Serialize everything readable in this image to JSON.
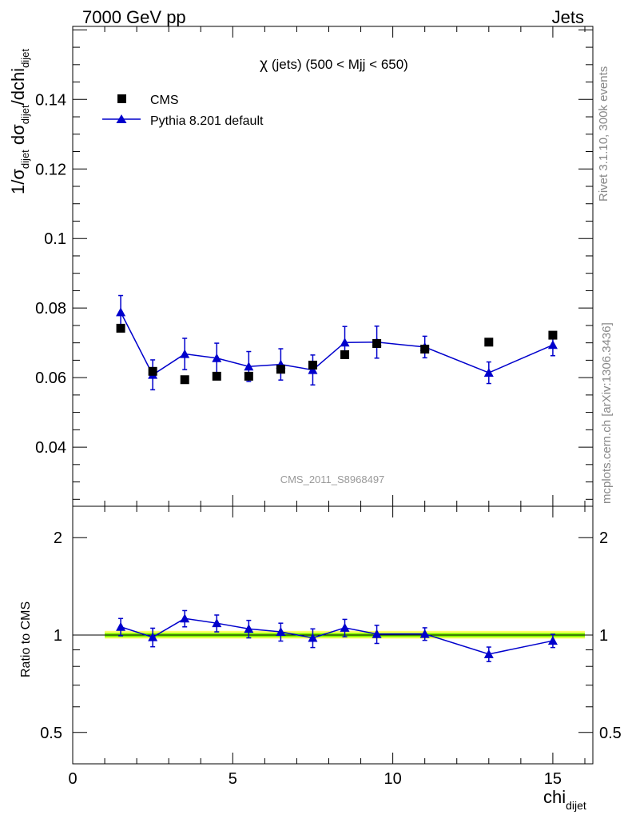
{
  "header": {
    "left": "7000 GeV pp",
    "right": "Jets"
  },
  "side_labels": {
    "rivet": "Rivet 3.1.10,  300k events",
    "mcplots": "mcplots.cern.ch [arXiv:1306.3436]"
  },
  "plot_title": {
    "chi": "χ",
    "rest": " (jets) (500 < Mjj <  650)"
  },
  "watermark": "CMS_2011_S8968497",
  "legend": {
    "data_label": "CMS",
    "mc_label": "Pythia 8.201 default"
  },
  "axes": {
    "x_label_main": "chi",
    "x_label_sub": "dijet",
    "ratio_ylabel": "Ratio to CMS"
  },
  "colors": {
    "data": "#000000",
    "mc": "#0000cc",
    "band_inner": "#80ff00",
    "band_outer": "#ffff66"
  },
  "chart_data": [
    {
      "type": "scatter",
      "panel": "main",
      "ylabel": "1/σ_dijet dσ_dijet/dchi_dijet",
      "xlim": [
        0,
        16.25
      ],
      "ylim": [
        0.023,
        0.161
      ],
      "x_ticks": [
        0,
        5,
        10,
        15
      ],
      "y_ticks": [
        0.04,
        0.06,
        0.08,
        0.1,
        0.12,
        0.14
      ],
      "y_tick_labels": [
        "0.04",
        "0.06",
        "0.08",
        "0.1",
        "0.12",
        "0.14"
      ],
      "series": [
        {
          "name": "CMS",
          "marker": "square",
          "x": [
            1.5,
            2.5,
            3.5,
            4.5,
            5.5,
            6.5,
            7.5,
            8.5,
            9.5,
            11.0,
            13.0,
            15.0
          ],
          "y": [
            0.0742,
            0.0618,
            0.0594,
            0.0604,
            0.0604,
            0.0624,
            0.0636,
            0.0666,
            0.0698,
            0.0682,
            0.0702,
            0.0722
          ]
        },
        {
          "name": "Pythia 8.201 default",
          "marker": "triangle",
          "x": [
            1.5,
            2.5,
            3.5,
            4.5,
            5.5,
            6.5,
            7.5,
            8.5,
            9.5,
            11.0,
            13.0,
            15.0
          ],
          "y": [
            0.0788,
            0.0608,
            0.0668,
            0.0656,
            0.0632,
            0.0638,
            0.0622,
            0.0701,
            0.0702,
            0.0688,
            0.0614,
            0.0694
          ],
          "yerr": [
            0.0048,
            0.0043,
            0.0045,
            0.0043,
            0.0043,
            0.0045,
            0.0043,
            0.0046,
            0.0046,
            0.0031,
            0.0031,
            0.0031
          ]
        }
      ]
    },
    {
      "type": "scatter",
      "panel": "ratio",
      "ylabel": "Ratio to CMS",
      "xlabel": "chi_dijet",
      "xlim": [
        0,
        16.25
      ],
      "y_scale": "log",
      "ylim": [
        0.4,
        2.5
      ],
      "x_ticks": [
        0,
        5,
        10,
        15
      ],
      "y_ticks": [
        0.5,
        1,
        2
      ],
      "y_tick_labels": [
        "0.5",
        "1",
        "2"
      ],
      "reference_line": 1,
      "band": {
        "xlim": [
          1.0,
          16.0
        ],
        "inner": [
          0.985,
          1.015
        ],
        "outer": [
          0.975,
          1.03
        ]
      },
      "series": [
        {
          "name": "Pythia 8.201 default",
          "marker": "triangle",
          "x": [
            1.5,
            2.5,
            3.5,
            4.5,
            5.5,
            6.5,
            7.5,
            8.5,
            9.5,
            11.0,
            13.0,
            15.0
          ],
          "y": [
            1.06,
            0.985,
            1.125,
            1.088,
            1.045,
            1.023,
            0.98,
            1.053,
            1.007,
            1.008,
            0.873,
            0.96
          ],
          "yerr": [
            0.065,
            0.065,
            0.065,
            0.065,
            0.065,
            0.065,
            0.065,
            0.065,
            0.065,
            0.045,
            0.045,
            0.045
          ]
        }
      ]
    }
  ]
}
